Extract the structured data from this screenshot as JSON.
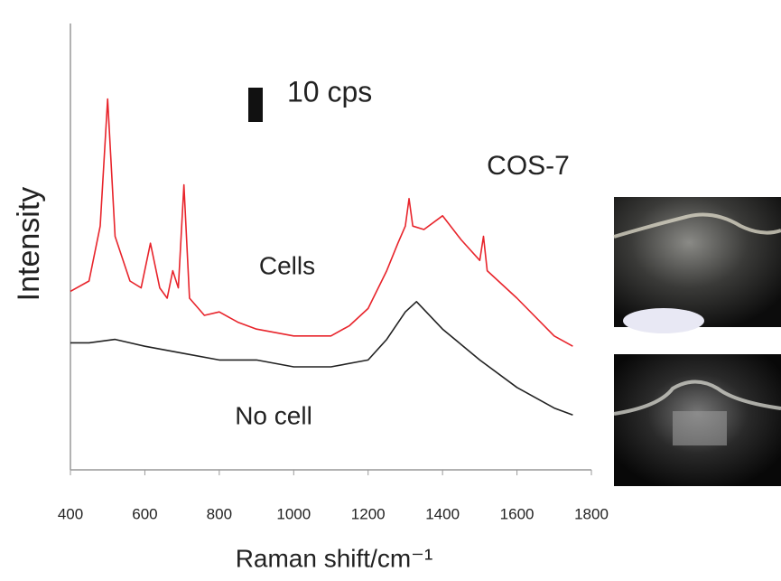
{
  "chart_data": {
    "type": "line",
    "title": "COS-7",
    "x_label": "Raman shift/cm⁻¹",
    "y_label": "Intensity",
    "scale_bar": {
      "value": 10,
      "label": "10 cps"
    },
    "xlim": [
      400,
      1800
    ],
    "xticks": [
      400,
      600,
      800,
      1000,
      1200,
      1400,
      1600,
      1800
    ],
    "ylim": [
      0,
      130
    ],
    "series": [
      {
        "name": "Cells",
        "color": "#e8242b",
        "x": [
          400,
          450,
          480,
          500,
          520,
          560,
          590,
          615,
          640,
          660,
          675,
          690,
          705,
          720,
          760,
          800,
          850,
          900,
          1000,
          1100,
          1150,
          1200,
          1250,
          1280,
          1300,
          1310,
          1320,
          1350,
          1400,
          1450,
          1500,
          1510,
          1520,
          1600,
          1700,
          1750
        ],
        "values": [
          52,
          55,
          71,
          108,
          68,
          55,
          53,
          66,
          53,
          50,
          58,
          53,
          83,
          50,
          45,
          46,
          43,
          41,
          39,
          39,
          42,
          47,
          58,
          66,
          71,
          79,
          71,
          70,
          74,
          67,
          61,
          68,
          58,
          50,
          39,
          36
        ]
      },
      {
        "name": "No cell",
        "color": "#222222",
        "x": [
          400,
          450,
          520,
          600,
          700,
          800,
          900,
          1000,
          1100,
          1200,
          1250,
          1300,
          1330,
          1400,
          1500,
          1600,
          1700,
          1750
        ],
        "values": [
          37,
          37,
          38,
          36,
          34,
          32,
          32,
          30,
          30,
          32,
          38,
          46,
          49,
          41,
          32,
          24,
          18,
          16
        ]
      }
    ]
  }
}
